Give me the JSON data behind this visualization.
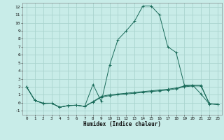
{
  "xlabel": "Humidex (Indice chaleur)",
  "bg_color": "#c8ece8",
  "grid_color": "#aad4ce",
  "line_color": "#1a6b5a",
  "xlim": [
    -0.5,
    23.5
  ],
  "ylim": [
    -1.5,
    12.5
  ],
  "xticks": [
    0,
    1,
    2,
    3,
    4,
    5,
    6,
    7,
    8,
    9,
    10,
    11,
    12,
    13,
    14,
    15,
    16,
    17,
    18,
    19,
    20,
    21,
    22,
    23
  ],
  "yticks": [
    -1,
    0,
    1,
    2,
    3,
    4,
    5,
    6,
    7,
    8,
    9,
    10,
    11,
    12
  ],
  "line1_x": [
    0,
    1,
    2,
    3,
    4,
    5,
    6,
    7,
    8,
    9,
    10,
    11,
    12,
    13,
    14,
    15,
    16,
    17,
    18,
    19,
    20,
    21,
    22,
    23
  ],
  "line1_y": [
    2.0,
    0.3,
    -0.1,
    -0.05,
    -0.55,
    -0.35,
    -0.3,
    -0.45,
    2.3,
    0.15,
    4.7,
    7.9,
    9.0,
    10.2,
    12.1,
    12.1,
    11.0,
    7.0,
    6.3,
    2.2,
    2.2,
    1.1,
    -0.15,
    -0.2
  ],
  "line2_x": [
    0,
    1,
    2,
    3,
    4,
    5,
    6,
    7,
    8,
    9,
    10,
    11,
    12,
    13,
    14,
    15,
    16,
    17,
    18,
    19,
    20,
    21,
    22,
    23
  ],
  "line2_y": [
    2.0,
    0.3,
    -0.05,
    -0.05,
    -0.55,
    -0.35,
    -0.3,
    -0.45,
    0.15,
    0.8,
    1.0,
    1.1,
    1.2,
    1.3,
    1.4,
    1.5,
    1.6,
    1.7,
    1.85,
    2.1,
    2.2,
    2.2,
    -0.1,
    -0.2
  ],
  "line3_x": [
    0,
    1,
    2,
    3,
    4,
    5,
    6,
    7,
    8,
    9,
    10,
    11,
    12,
    13,
    14,
    15,
    16,
    17,
    18,
    19,
    20,
    21,
    22,
    23
  ],
  "line3_y": [
    2.0,
    0.3,
    -0.05,
    -0.05,
    -0.55,
    -0.35,
    -0.3,
    -0.45,
    0.1,
    0.7,
    0.9,
    1.0,
    1.1,
    1.2,
    1.3,
    1.4,
    1.5,
    1.6,
    1.75,
    2.0,
    2.1,
    2.1,
    -0.1,
    -0.2
  ]
}
